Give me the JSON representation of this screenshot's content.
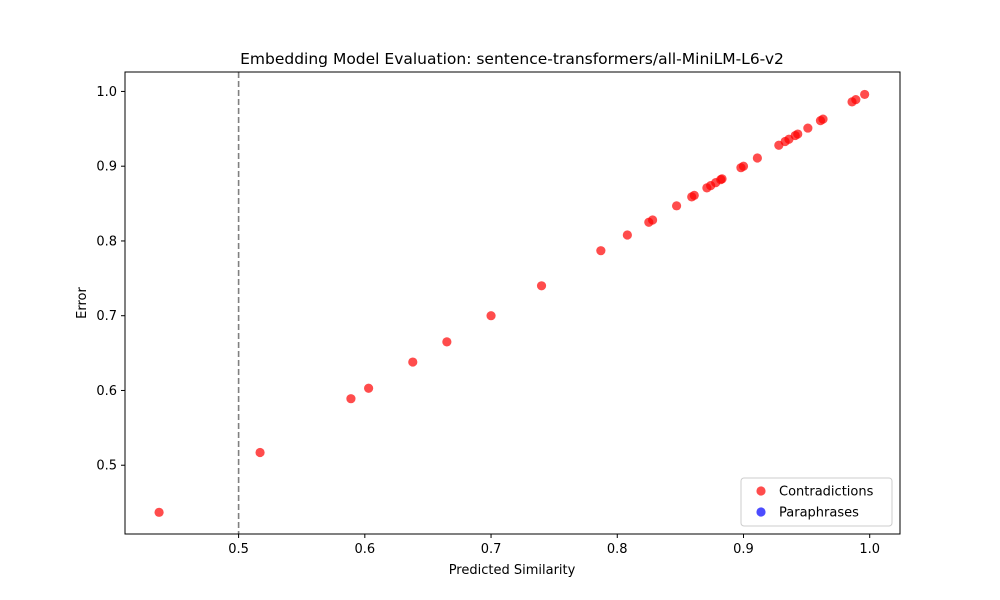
{
  "chart_data": {
    "type": "scatter",
    "title": "Embedding Model Evaluation: sentence-transformers/all-MiniLM-L6-v2",
    "xlabel": "Predicted Similarity",
    "ylabel": "Error",
    "xlim": [
      0.41,
      1.024
    ],
    "ylim": [
      0.408,
      1.026
    ],
    "x_ticks": [
      0.5,
      0.6,
      0.7,
      0.8,
      0.9,
      1.0
    ],
    "x_tick_labels": [
      "0.5",
      "0.6",
      "0.7",
      "0.8",
      "0.9",
      "1.0"
    ],
    "y_ticks": [
      0.5,
      0.6,
      0.7,
      0.8,
      0.9,
      1.0
    ],
    "y_tick_labels": [
      "0.5",
      "0.6",
      "0.7",
      "0.8",
      "0.9",
      "1.0"
    ],
    "threshold_line": {
      "x": 0.5,
      "color": "#808080",
      "style": "dashed"
    },
    "grid": false,
    "legend_position": "lower-right",
    "series": [
      {
        "name": "Contradictions",
        "color": "#ff0000",
        "alpha": 0.7,
        "points": [
          [
            0.437,
            0.437
          ],
          [
            0.517,
            0.517
          ],
          [
            0.589,
            0.589
          ],
          [
            0.603,
            0.603
          ],
          [
            0.638,
            0.638
          ],
          [
            0.665,
            0.665
          ],
          [
            0.7,
            0.7
          ],
          [
            0.74,
            0.74
          ],
          [
            0.787,
            0.787
          ],
          [
            0.808,
            0.808
          ],
          [
            0.825,
            0.825
          ],
          [
            0.828,
            0.828
          ],
          [
            0.847,
            0.847
          ],
          [
            0.859,
            0.859
          ],
          [
            0.861,
            0.861
          ],
          [
            0.871,
            0.871
          ],
          [
            0.874,
            0.874
          ],
          [
            0.878,
            0.878
          ],
          [
            0.882,
            0.882
          ],
          [
            0.883,
            0.883
          ],
          [
            0.898,
            0.898
          ],
          [
            0.9,
            0.9
          ],
          [
            0.911,
            0.911
          ],
          [
            0.928,
            0.928
          ],
          [
            0.933,
            0.933
          ],
          [
            0.936,
            0.936
          ],
          [
            0.941,
            0.941
          ],
          [
            0.943,
            0.943
          ],
          [
            0.951,
            0.951
          ],
          [
            0.961,
            0.961
          ],
          [
            0.963,
            0.963
          ],
          [
            0.986,
            0.986
          ],
          [
            0.989,
            0.989
          ],
          [
            0.996,
            0.996
          ]
        ]
      },
      {
        "name": "Paraphrases",
        "color": "#0000ff",
        "alpha": 0.7,
        "points": []
      }
    ]
  }
}
